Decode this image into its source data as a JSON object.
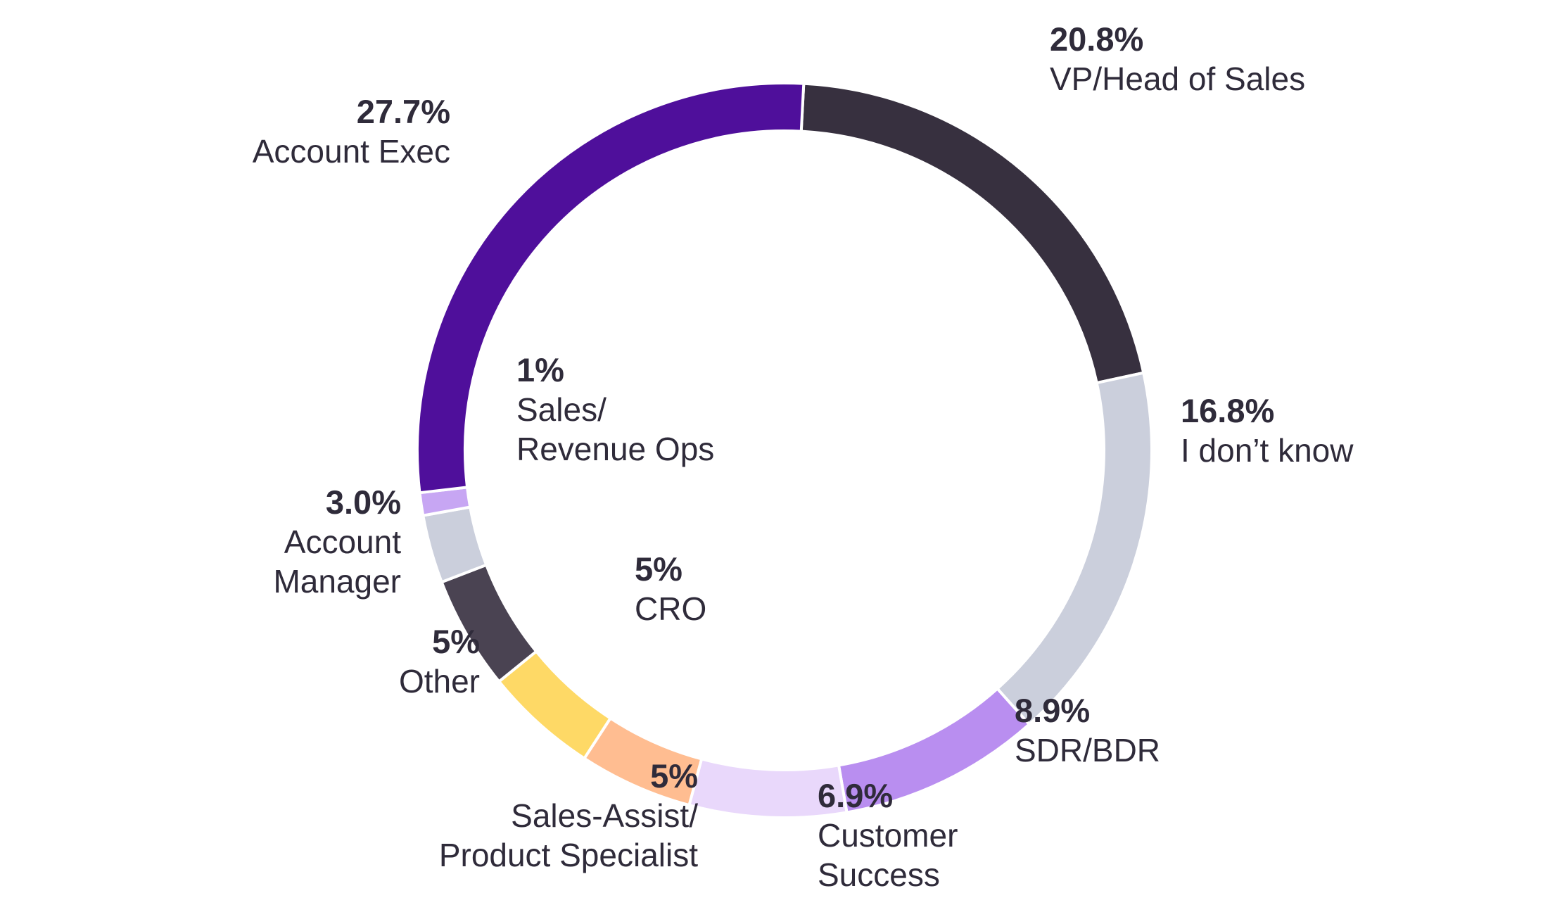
{
  "chart_data": {
    "type": "pie",
    "style": "donut",
    "start_angle_deg": 3,
    "direction": "clockwise",
    "slices": [
      {
        "name_lines": [
          "VP/Head of Sales"
        ],
        "value": 20.8,
        "label": "20.8%",
        "color": "#37303f"
      },
      {
        "name_lines": [
          "I don’t know"
        ],
        "value": 16.8,
        "label": "16.8%",
        "color": "#cbcfdc"
      },
      {
        "name_lines": [
          "SDR/BDR"
        ],
        "value": 8.9,
        "label": "8.9%",
        "color": "#b98ef0"
      },
      {
        "name_lines": [
          "Customer",
          "Success"
        ],
        "value": 6.9,
        "label": "6.9%",
        "color": "#e9d8fb"
      },
      {
        "name_lines": [
          "Sales-Assist/",
          "Product Specialist"
        ],
        "value": 5,
        "label": "5%",
        "color": "#ffbd91"
      },
      {
        "name_lines": [
          "CRO"
        ],
        "value": 5,
        "label": "5%",
        "color": "#fed966"
      },
      {
        "name_lines": [
          "Other"
        ],
        "value": 5,
        "label": "5%",
        "color": "#4a4352"
      },
      {
        "name_lines": [
          "Account",
          "Manager"
        ],
        "value": 3.0,
        "label": "3.0%",
        "color": "#cbcfdc"
      },
      {
        "name_lines": [
          "Sales/",
          "Revenue Ops"
        ],
        "value": 1,
        "label": "1%",
        "color": "#c7a6f3"
      },
      {
        "name_lines": [
          "Account Exec"
        ],
        "value": 27.7,
        "label": "27.7%",
        "color": "#4f0f9b"
      }
    ]
  }
}
